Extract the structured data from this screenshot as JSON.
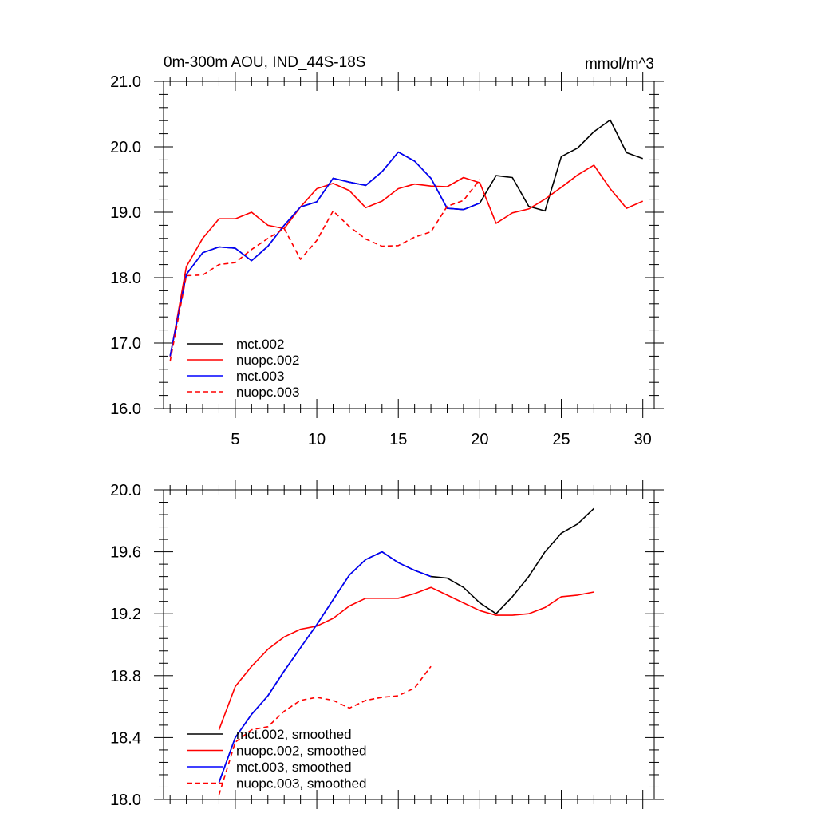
{
  "chart_data": [
    {
      "type": "line",
      "title_left": "0m-300m AOU, IND_44S-18S",
      "title_right": "mmol/m^3",
      "xlim": [
        0.6,
        30.7
      ],
      "ylim": [
        16.0,
        21.0
      ],
      "x_ticks": [
        5,
        10,
        15,
        20,
        25,
        30
      ],
      "y_ticks": [
        16.0,
        17.0,
        18.0,
        19.0,
        20.0,
        21.0
      ],
      "y_tick_labels": [
        "16.0",
        "17.0",
        "18.0",
        "19.0",
        "20.0",
        "21.0"
      ],
      "x_tick_labels": [
        "5",
        "10",
        "15",
        "20",
        "25",
        "30"
      ],
      "legend_position": "bottom-left",
      "series": [
        {
          "name": "mct.002",
          "color": "#000000",
          "dash": "solid",
          "x": [
            1,
            2,
            3,
            4,
            5,
            6,
            7,
            8,
            9,
            10,
            11,
            12,
            13,
            14,
            15,
            16,
            17,
            18,
            19,
            20,
            21,
            22,
            23,
            24,
            25,
            26,
            27,
            28,
            29,
            30
          ],
          "y": [
            16.8,
            18.05,
            18.38,
            18.47,
            18.45,
            18.26,
            18.48,
            18.8,
            19.08,
            19.16,
            19.52,
            19.46,
            19.41,
            19.62,
            19.92,
            19.78,
            19.52,
            19.06,
            19.04,
            19.14,
            19.56,
            19.53,
            19.09,
            19.02,
            19.85,
            19.98,
            20.23,
            20.41,
            19.91,
            19.82
          ]
        },
        {
          "name": "nuopc.002",
          "color": "#ff0000",
          "dash": "solid",
          "x": [
            1,
            2,
            3,
            4,
            5,
            6,
            7,
            8,
            9,
            10,
            11,
            12,
            13,
            14,
            15,
            16,
            17,
            18,
            19,
            20,
            21,
            22,
            23,
            24,
            25,
            26,
            27,
            28,
            29,
            30
          ],
          "y": [
            16.78,
            18.17,
            18.6,
            18.9,
            18.9,
            19.0,
            18.8,
            18.75,
            19.08,
            19.36,
            19.44,
            19.33,
            19.07,
            19.17,
            19.36,
            19.43,
            19.4,
            19.39,
            19.53,
            19.45,
            18.83,
            18.99,
            19.05,
            19.2,
            19.38,
            19.57,
            19.72,
            19.36,
            19.06,
            19.17
          ]
        },
        {
          "name": "mct.003",
          "color": "#0000ff",
          "dash": "solid",
          "x": [
            1,
            2,
            3,
            4,
            5,
            6,
            7,
            8,
            9,
            10,
            11,
            12,
            13,
            14,
            15,
            16,
            17,
            18,
            19,
            20
          ],
          "y": [
            16.8,
            18.05,
            18.38,
            18.47,
            18.45,
            18.26,
            18.48,
            18.8,
            19.08,
            19.16,
            19.52,
            19.46,
            19.41,
            19.62,
            19.92,
            19.78,
            19.52,
            19.06,
            19.04,
            19.14
          ]
        },
        {
          "name": "nuopc.003",
          "color": "#ff0000",
          "dash": "dashed",
          "x": [
            1,
            2,
            3,
            4,
            5,
            6,
            7,
            8,
            9,
            10,
            11,
            12,
            13,
            14,
            15,
            16,
            17,
            18,
            19,
            20
          ],
          "y": [
            16.72,
            18.03,
            18.04,
            18.2,
            18.23,
            18.43,
            18.6,
            18.75,
            18.28,
            18.57,
            19.02,
            18.78,
            18.59,
            18.48,
            18.49,
            18.62,
            18.7,
            19.09,
            19.18,
            19.5
          ]
        }
      ]
    },
    {
      "type": "line",
      "xlim": [
        0.6,
        30.7
      ],
      "ylim": [
        18.0,
        20.0
      ],
      "x_ticks": [
        5,
        10,
        15,
        20,
        25,
        30
      ],
      "y_ticks": [
        18.0,
        18.4,
        18.8,
        19.2,
        19.6,
        20.0
      ],
      "y_tick_labels": [
        "18.0",
        "18.4",
        "18.8",
        "19.2",
        "19.6",
        "20.0"
      ],
      "legend_position": "bottom-left",
      "series": [
        {
          "name": "mct.002, smoothed",
          "color": "#000000",
          "dash": "solid",
          "x": [
            4,
            5,
            6,
            7,
            8,
            9,
            10,
            11,
            12,
            13,
            14,
            15,
            16,
            17,
            18,
            19,
            20,
            21,
            22,
            23,
            24,
            25,
            26,
            27
          ],
          "y": [
            18.11,
            18.4,
            18.55,
            18.67,
            18.83,
            18.98,
            19.13,
            19.29,
            19.45,
            19.55,
            19.6,
            19.53,
            19.48,
            19.44,
            19.43,
            19.37,
            19.27,
            19.2,
            19.31,
            19.44,
            19.6,
            19.72,
            19.78,
            19.88
          ]
        },
        {
          "name": "nuopc.002, smoothed",
          "color": "#ff0000",
          "dash": "solid",
          "x": [
            4,
            5,
            6,
            7,
            8,
            9,
            10,
            11,
            12,
            13,
            14,
            15,
            16,
            17,
            18,
            19,
            20,
            21,
            22,
            23,
            24,
            25,
            26,
            27
          ],
          "y": [
            18.45,
            18.73,
            18.86,
            18.97,
            19.05,
            19.1,
            19.12,
            19.17,
            19.25,
            19.3,
            19.3,
            19.3,
            19.33,
            19.37,
            19.32,
            19.27,
            19.22,
            19.19,
            19.19,
            19.2,
            19.24,
            19.31,
            19.32,
            19.34
          ]
        },
        {
          "name": "mct.003, smoothed",
          "color": "#0000ff",
          "dash": "solid",
          "x": [
            4,
            5,
            6,
            7,
            8,
            9,
            10,
            11,
            12,
            13,
            14,
            15,
            16,
            17
          ],
          "y": [
            18.11,
            18.4,
            18.55,
            18.67,
            18.83,
            18.98,
            19.13,
            19.29,
            19.45,
            19.55,
            19.6,
            19.53,
            19.48,
            19.44
          ]
        },
        {
          "name": "nuopc.003, smoothed",
          "color": "#ff0000",
          "dash": "dashed",
          "x": [
            4,
            5,
            6,
            7,
            8,
            9,
            10,
            11,
            12,
            13,
            14,
            15,
            16,
            17
          ],
          "y": [
            18.03,
            18.37,
            18.45,
            18.47,
            18.57,
            18.64,
            18.66,
            18.64,
            18.59,
            18.64,
            18.66,
            18.67,
            18.72,
            18.86
          ]
        }
      ]
    }
  ]
}
